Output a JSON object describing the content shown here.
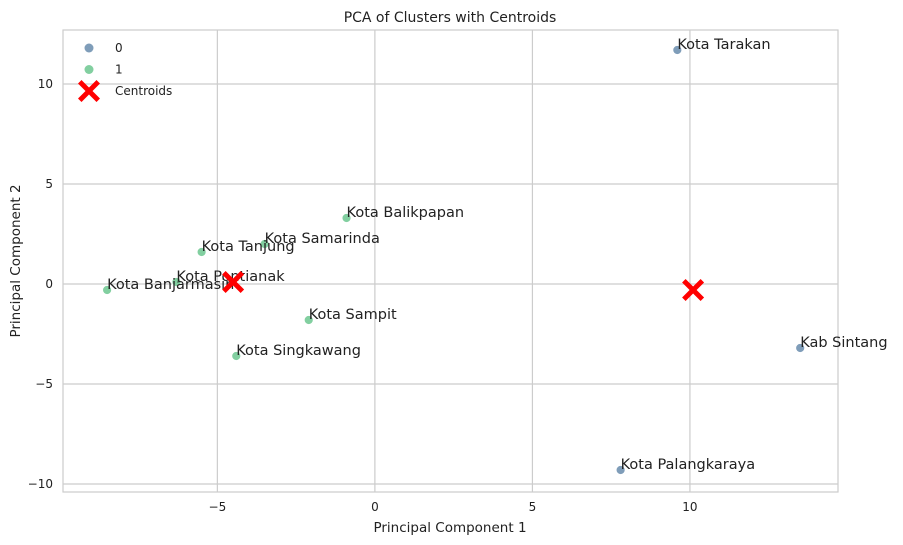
{
  "chart_data": {
    "type": "scatter",
    "title": "PCA of Clusters with Centroids",
    "xlabel": "Principal Component 1",
    "ylabel": "Principal Component 2",
    "xlim": [
      -9.9,
      14.7
    ],
    "ylim": [
      -10.4,
      12.7
    ],
    "xticks": [
      -5,
      0,
      5,
      10
    ],
    "yticks": [
      -10,
      -5,
      0,
      5,
      10
    ],
    "xtick_labels": [
      "−5",
      "0",
      "5",
      "10"
    ],
    "ytick_labels": [
      "−10",
      "−5",
      "0",
      "5",
      "10"
    ],
    "grid": true,
    "legend_position": "top-left",
    "legend": [
      {
        "label": "0",
        "kind": "cluster",
        "cluster": 0
      },
      {
        "label": "1",
        "kind": "cluster",
        "cluster": 1
      },
      {
        "label": "Centroids",
        "kind": "centroid"
      }
    ],
    "cluster_colors": {
      "0": "#7f9db9",
      "1": "#82cfa0"
    },
    "centroid_color": "#ff0000",
    "points": [
      {
        "label": "Kota Tarakan",
        "x": 9.6,
        "y": 11.7,
        "cluster": 0
      },
      {
        "label": "Kab Sintang",
        "x": 13.5,
        "y": -3.2,
        "cluster": 0
      },
      {
        "label": "Kota Palangkaraya",
        "x": 7.8,
        "y": -9.3,
        "cluster": 0
      },
      {
        "label": "Kota Balikpapan",
        "x": -0.9,
        "y": 3.3,
        "cluster": 1
      },
      {
        "label": "Kota Samarinda",
        "x": -3.5,
        "y": 2.0,
        "cluster": 1
      },
      {
        "label": "Kota Tanjung",
        "x": -5.5,
        "y": 1.6,
        "cluster": 1
      },
      {
        "label": "Kota Pontianak",
        "x": -6.3,
        "y": 0.1,
        "cluster": 1
      },
      {
        "label": "Kota Banjarmasin",
        "x": -8.5,
        "y": -0.3,
        "cluster": 1
      },
      {
        "label": "Kota Sampit",
        "x": -2.1,
        "y": -1.8,
        "cluster": 1
      },
      {
        "label": "Kota Singkawang",
        "x": -4.4,
        "y": -3.6,
        "cluster": 1
      }
    ],
    "centroids": [
      {
        "x": -4.5,
        "y": 0.1
      },
      {
        "x": 10.1,
        "y": -0.3
      }
    ]
  }
}
